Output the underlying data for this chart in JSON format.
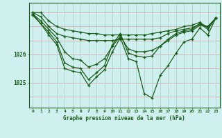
{
  "title": "Graphe pression niveau de la mer (hPa)",
  "bg_color": "#cff0ee",
  "plot_bg_color": "#cff0ee",
  "line_color": "#1a5c1a",
  "grid_h_color": "#dd9999",
  "grid_v_color": "#aacccc",
  "x_values": [
    0,
    1,
    2,
    3,
    4,
    5,
    6,
    7,
    8,
    9,
    10,
    11,
    12,
    13,
    14,
    15,
    16,
    17,
    18,
    19,
    20,
    21,
    22,
    23
  ],
  "series": [
    [
      1027.5,
      1027.5,
      1027.2,
      1027.0,
      1026.9,
      1026.85,
      1026.8,
      1026.75,
      1026.75,
      1026.7,
      1026.7,
      1026.7,
      1026.7,
      1026.7,
      1026.7,
      1026.75,
      1026.8,
      1026.85,
      1026.9,
      1027.0,
      1027.05,
      1027.15,
      1026.95,
      1027.3
    ],
    [
      1027.5,
      1027.35,
      1027.0,
      1026.75,
      1026.65,
      1026.6,
      1026.55,
      1026.5,
      1026.5,
      1026.5,
      1026.5,
      1026.55,
      1026.55,
      1026.55,
      1026.55,
      1026.55,
      1026.6,
      1026.75,
      1026.85,
      1026.9,
      1026.95,
      1027.1,
      1026.9,
      1027.3
    ],
    [
      1027.45,
      1027.2,
      1026.9,
      1026.6,
      1026.1,
      1025.85,
      1025.8,
      1025.55,
      1025.65,
      1025.85,
      1026.3,
      1026.65,
      1026.2,
      1026.1,
      1026.1,
      1026.15,
      1026.3,
      1026.5,
      1026.7,
      1026.8,
      1026.85,
      1027.05,
      1027.0,
      1027.3
    ],
    [
      1027.45,
      1027.1,
      1026.8,
      1026.45,
      1025.7,
      1025.55,
      1025.5,
      1025.1,
      1025.35,
      1025.6,
      1026.35,
      1026.75,
      1026.05,
      1025.95,
      1025.9,
      1025.95,
      1026.3,
      1026.55,
      1026.75,
      1026.85,
      1026.9,
      1027.1,
      1027.0,
      1027.3
    ],
    [
      1027.4,
      1027.1,
      1026.7,
      1026.35,
      1025.5,
      1025.4,
      1025.35,
      1024.9,
      1025.2,
      1025.45,
      1026.1,
      1026.6,
      1025.85,
      1025.75,
      1024.6,
      1024.45,
      1025.25,
      1025.6,
      1026.05,
      1026.45,
      1026.55,
      1026.95,
      1026.7,
      1027.3
    ]
  ],
  "ylim": [
    1024.1,
    1027.85
  ],
  "yticks": [
    1025.0,
    1026.0
  ],
  "ytick_labels": [
    "1025",
    "1026"
  ],
  "marker": "+",
  "markersize": 3.5,
  "linewidth": 0.9
}
